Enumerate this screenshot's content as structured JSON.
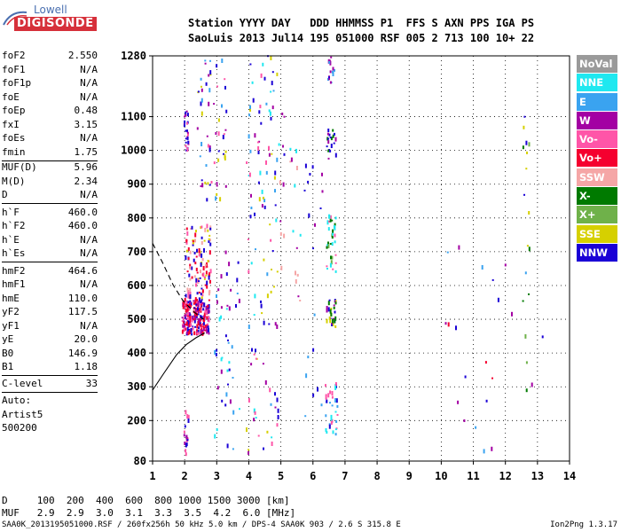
{
  "logo": {
    "line1": "Lowell",
    "line2": "DIGISONDE"
  },
  "header": {
    "line1": "Station YYYY DAY   DDD HHMMSS P1  FFS S AXN PPS IGA PS",
    "line2": "SaoLuis 2013 Jul14 195 051000 RSF 005 2 713 100 10+ 22"
  },
  "params": [
    {
      "key": "foF2",
      "value": "2.550"
    },
    {
      "key": "foF1",
      "value": "N/A"
    },
    {
      "key": "foF1p",
      "value": "N/A"
    },
    {
      "key": "foE",
      "value": "N/A"
    },
    {
      "key": "foEp",
      "value": "0.48"
    },
    {
      "key": "fxI",
      "value": "3.15"
    },
    {
      "key": "foEs",
      "value": "N/A"
    },
    {
      "key": "fmin",
      "value": "1.75"
    },
    {
      "key": "MUF(D)",
      "value": "5.96"
    },
    {
      "key": "M(D)",
      "value": "2.34"
    },
    {
      "key": "D",
      "value": "N/A"
    },
    {
      "key": "h`F",
      "value": "460.0"
    },
    {
      "key": "h`F2",
      "value": "460.0"
    },
    {
      "key": "h`E",
      "value": "N/A"
    },
    {
      "key": "h`Es",
      "value": "N/A"
    },
    {
      "key": "hmF2",
      "value": "464.6"
    },
    {
      "key": "hmF1",
      "value": "N/A"
    },
    {
      "key": "hmE",
      "value": "110.0"
    },
    {
      "key": "yF2",
      "value": "117.5"
    },
    {
      "key": "yF1",
      "value": "N/A"
    },
    {
      "key": "yE",
      "value": "20.0"
    },
    {
      "key": "B0",
      "value": "146.9"
    },
    {
      "key": "B1",
      "value": "1.18"
    },
    {
      "key": "C-level",
      "value": "33"
    },
    {
      "key": "Auto:",
      "value": ""
    },
    {
      "key": "Artist5",
      "value": ""
    },
    {
      "key": "500200",
      "value": ""
    }
  ],
  "legend": [
    {
      "label": "NoVal",
      "color": "#9a9a9a"
    },
    {
      "label": "NNE",
      "color": "#1fe8f0"
    },
    {
      "label": "E",
      "color": "#3aa3f0"
    },
    {
      "label": "W",
      "color": "#a300a3"
    },
    {
      "label": "Vo-",
      "color": "#ff55a8"
    },
    {
      "label": "Vo+",
      "color": "#f5002f"
    },
    {
      "label": "SSW",
      "color": "#f5a6a6"
    },
    {
      "label": "X-",
      "color": "#007a00"
    },
    {
      "label": "X+",
      "color": "#6fb14a"
    },
    {
      "label": "SSE",
      "color": "#d6d000"
    },
    {
      "label": "NNW",
      "color": "#1a00d6"
    }
  ],
  "muf_table": {
    "line1": "D     100  200  400  600  800 1000 1500 3000 [km]",
    "line2": "MUF   2.9  2.9  3.0  3.1  3.3  3.5  4.2  6.0 [MHz]"
  },
  "footer": {
    "left": "SAA0K_2013195051000.RSF / 260fx256h 50 kHz 5.0 km / DPS-4 SAA0K 903 / 2.6 S 315.8 E",
    "right": "Ion2Png 1.3.17"
  },
  "chart_data": {
    "type": "scatter",
    "x_ticks": [
      1,
      2,
      3,
      4,
      5,
      6,
      7,
      8,
      9,
      10,
      11,
      12,
      13,
      14
    ],
    "y_ticks": [
      80,
      200,
      300,
      400,
      500,
      600,
      700,
      800,
      900,
      1000,
      1100,
      1280
    ],
    "xlim": [
      1,
      14
    ],
    "ylim": [
      80,
      1280
    ],
    "grid": true,
    "traces": [
      {
        "name": "profile_solid",
        "style": "solid",
        "points": [
          [
            1.0,
            290
          ],
          [
            1.35,
            340
          ],
          [
            1.75,
            395
          ],
          [
            2.05,
            425
          ],
          [
            2.35,
            445
          ],
          [
            2.6,
            458
          ],
          [
            2.62,
            460
          ]
        ]
      },
      {
        "name": "profile_dashed",
        "style": "dashed",
        "points": [
          [
            1.0,
            725
          ],
          [
            1.3,
            670
          ],
          [
            1.65,
            600
          ],
          [
            1.95,
            555
          ],
          [
            2.25,
            525
          ],
          [
            2.5,
            505
          ],
          [
            2.6,
            500
          ]
        ]
      }
    ],
    "clusters": [
      {
        "x": [
          1.9,
          2.75
        ],
        "y": [
          455,
          560
        ],
        "n": 220,
        "colors": [
          "#f5002f",
          "#ff55a8",
          "#a300a3",
          "#1a00d6",
          "#f5002f"
        ]
      },
      {
        "x": [
          2.0,
          2.8
        ],
        "y": [
          560,
          780
        ],
        "n": 110,
        "colors": [
          "#f5002f",
          "#ff55a8",
          "#f5a6a6",
          "#d6d000",
          "#1a00d6"
        ]
      },
      {
        "x": [
          1.95,
          2.1
        ],
        "y": [
          1000,
          1120
        ],
        "n": 25,
        "colors": [
          "#a300a3",
          "#ff55a8",
          "#1a00d6"
        ]
      },
      {
        "x": [
          1.95,
          2.1
        ],
        "y": [
          90,
          240
        ],
        "n": 20,
        "colors": [
          "#a300a3",
          "#1a00d6",
          "#ff55a8"
        ]
      },
      {
        "x": [
          2.35,
          3.3
        ],
        "y": [
          850,
          1280
        ],
        "n": 60,
        "colors": [
          "#1a00d6",
          "#a300a3",
          "#ff55a8",
          "#3aa3f0",
          "#d6d000"
        ]
      },
      {
        "x": [
          2.9,
          3.7
        ],
        "y": [
          100,
          700
        ],
        "n": 45,
        "colors": [
          "#1a00d6",
          "#3aa3f0",
          "#1fe8f0",
          "#a300a3"
        ]
      },
      {
        "x": [
          3.9,
          4.9
        ],
        "y": [
          100,
          1280
        ],
        "n": 110,
        "colors": [
          "#1a00d6",
          "#a300a3",
          "#3aa3f0",
          "#1fe8f0",
          "#d6d000",
          "#ff55a8"
        ]
      },
      {
        "x": [
          4.9,
          5.6
        ],
        "y": [
          380,
          1120
        ],
        "n": 25,
        "colors": [
          "#1a00d6",
          "#a300a3",
          "#f5a6a6",
          "#1fe8f0"
        ]
      },
      {
        "x": [
          6.35,
          6.75
        ],
        "y": [
          150,
          320
        ],
        "n": 35,
        "colors": [
          "#1a00d6",
          "#3aa3f0",
          "#1fe8f0",
          "#ff55a8"
        ]
      },
      {
        "x": [
          6.4,
          6.7
        ],
        "y": [
          470,
          560
        ],
        "n": 30,
        "colors": [
          "#007a00",
          "#d6d000",
          "#1a00d6",
          "#a300a3"
        ]
      },
      {
        "x": [
          6.4,
          6.7
        ],
        "y": [
          640,
          810
        ],
        "n": 35,
        "colors": [
          "#6fb14a",
          "#007a00",
          "#1fe8f0",
          "#ff55a8"
        ]
      },
      {
        "x": [
          6.4,
          6.7
        ],
        "y": [
          960,
          1060
        ],
        "n": 20,
        "colors": [
          "#007a00",
          "#1a00d6",
          "#a300a3"
        ]
      },
      {
        "x": [
          6.4,
          6.65
        ],
        "y": [
          1200,
          1280
        ],
        "n": 15,
        "colors": [
          "#1a00d6",
          "#a300a3",
          "#3aa3f0"
        ]
      },
      {
        "x": [
          5.7,
          6.3
        ],
        "y": [
          200,
          1000
        ],
        "n": 20,
        "colors": [
          "#1a00d6",
          "#a300a3",
          "#3aa3f0"
        ]
      },
      {
        "x": [
          12.5,
          12.75
        ],
        "y": [
          260,
          1110
        ],
        "n": 16,
        "colors": [
          "#007a00",
          "#6fb14a",
          "#1a00d6",
          "#d6d000"
        ]
      },
      {
        "x": [
          10.0,
          13.3
        ],
        "y": [
          85,
          740
        ],
        "n": 22,
        "colors": [
          "#1a00d6",
          "#a300a3",
          "#f5002f",
          "#3aa3f0",
          "#d6d000"
        ]
      }
    ]
  }
}
